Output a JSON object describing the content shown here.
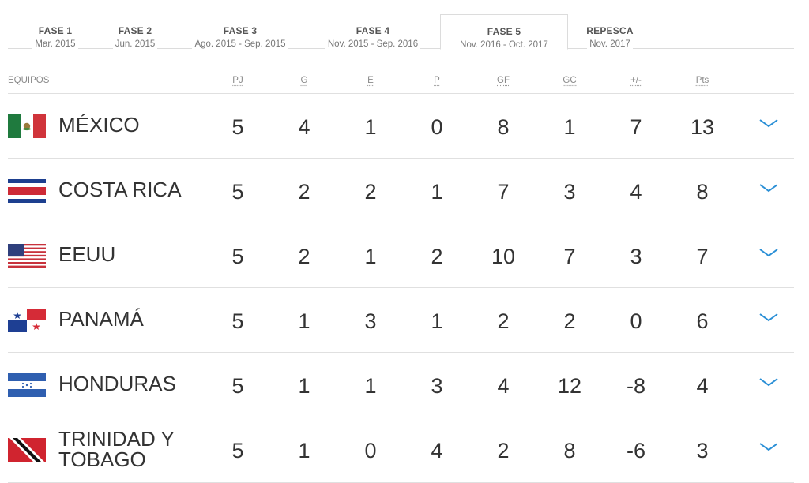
{
  "phases": [
    {
      "title": "FASE 1",
      "date": "Mar. 2015"
    },
    {
      "title": "FASE 2",
      "date": "Jun. 2015"
    },
    {
      "title": "FASE 3",
      "date": "Ago. 2015 - Sep. 2015"
    },
    {
      "title": "FASE 4",
      "date": "Nov. 2015 - Sep. 2016"
    },
    {
      "title": "FASE 5",
      "date": "Nov. 2016 - Oct. 2017",
      "active": true
    },
    {
      "title": "REPESCA",
      "date": "Nov. 2017"
    }
  ],
  "table": {
    "team_header": "EQUIPOS",
    "columns": [
      "PJ",
      "G",
      "E",
      "P",
      "GF",
      "GC",
      "+/-",
      "Pts"
    ],
    "rows": [
      {
        "team": "MÉXICO",
        "flag": "mexico-flag-icon",
        "stats": [
          "5",
          "4",
          "1",
          "0",
          "8",
          "1",
          "7",
          "13"
        ]
      },
      {
        "team": "COSTA RICA",
        "flag": "costa-rica-flag-icon",
        "stats": [
          "5",
          "2",
          "2",
          "1",
          "7",
          "3",
          "4",
          "8"
        ]
      },
      {
        "team": "EEUU",
        "flag": "usa-flag-icon",
        "stats": [
          "5",
          "2",
          "1",
          "2",
          "10",
          "7",
          "3",
          "7"
        ]
      },
      {
        "team": "PANAMÁ",
        "flag": "panama-flag-icon",
        "stats": [
          "5",
          "1",
          "3",
          "1",
          "2",
          "2",
          "0",
          "6"
        ]
      },
      {
        "team": "HONDURAS",
        "flag": "honduras-flag-icon",
        "stats": [
          "5",
          "1",
          "1",
          "3",
          "4",
          "12",
          "-8",
          "4"
        ]
      },
      {
        "team": "TRINIDAD Y TOBAGO",
        "team_lines": [
          "TRINIDAD Y",
          "TOBAGO"
        ],
        "flag": "trinidad-tobago-flag-icon",
        "stats": [
          "5",
          "1",
          "0",
          "4",
          "2",
          "8",
          "-6",
          "3"
        ]
      }
    ]
  },
  "colors": {
    "accent": "#2a8fd6",
    "text": "#333333",
    "muted": "#8a8a8a",
    "rule": "#e0e0e0"
  }
}
